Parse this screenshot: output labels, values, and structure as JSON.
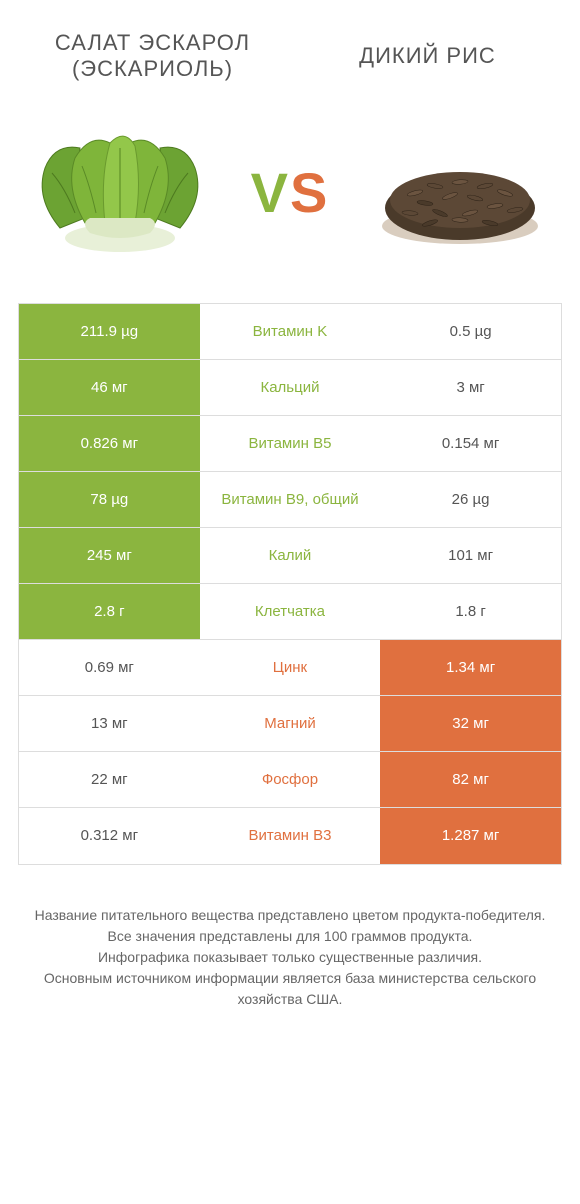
{
  "product_left": "САЛАТ ЭСКАРОЛ (ЭСКАРИОЛЬ)",
  "product_right": "ДИКИЙ РИС",
  "vs_v": "V",
  "vs_s": "S",
  "colors": {
    "green": "#8bb53f",
    "orange": "#e0703f",
    "white": "#ffffff",
    "text": "#555555"
  },
  "rows": [
    {
      "left": "211.9 µg",
      "mid": "Витамин K",
      "right": "0.5 µg",
      "winner": "left"
    },
    {
      "left": "46 мг",
      "mid": "Кальций",
      "right": "3 мг",
      "winner": "left"
    },
    {
      "left": "0.826 мг",
      "mid": "Витамин B5",
      "right": "0.154 мг",
      "winner": "left"
    },
    {
      "left": "78 µg",
      "mid": "Витамин B9, общий",
      "right": "26 µg",
      "winner": "left"
    },
    {
      "left": "245 мг",
      "mid": "Калий",
      "right": "101 мг",
      "winner": "left"
    },
    {
      "left": "2.8 г",
      "mid": "Клетчатка",
      "right": "1.8 г",
      "winner": "left"
    },
    {
      "left": "0.69 мг",
      "mid": "Цинк",
      "right": "1.34 мг",
      "winner": "right"
    },
    {
      "left": "13 мг",
      "mid": "Магний",
      "right": "32 мг",
      "winner": "right"
    },
    {
      "left": "22 мг",
      "mid": "Фосфор",
      "right": "82 мг",
      "winner": "right"
    },
    {
      "left": "0.312 мг",
      "mid": "Витамин B3",
      "right": "1.287 мг",
      "winner": "right"
    }
  ],
  "footer_lines": [
    "Название питательного вещества представлено цветом продукта-победителя.",
    "Все значения представлены для 100 граммов продукта.",
    "Инфографика показывает только существенные различия.",
    "Основным источником информации является база министерства сельского хозяйства США."
  ]
}
